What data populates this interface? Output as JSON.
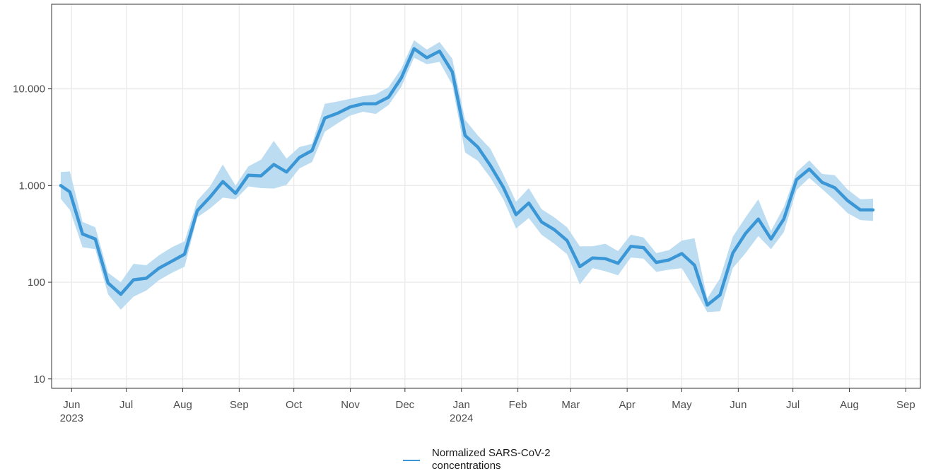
{
  "chart_data": {
    "type": "line",
    "title": "",
    "xlabel": "",
    "ylabel": "",
    "y_scale": "log10",
    "ylim": [
      8,
      75000
    ],
    "xlim": [
      "2023-05-21",
      "2024-09-09"
    ],
    "grid": true,
    "legend_position": "bottom",
    "colors": {
      "line": "#3b96d6",
      "band": "#bcdcf1",
      "grid": "#ebebeb",
      "axis": "#333333"
    },
    "y_ticks": [
      {
        "value": 10,
        "label": "10"
      },
      {
        "value": 100,
        "label": "100"
      },
      {
        "value": 1000,
        "label": "1.000"
      },
      {
        "value": 10000,
        "label": "10.000"
      }
    ],
    "x_ticks": [
      {
        "date": "2023-06-01",
        "label": "Jun",
        "year": "2023"
      },
      {
        "date": "2023-07-01",
        "label": "Jul",
        "year": ""
      },
      {
        "date": "2023-08-01",
        "label": "Aug",
        "year": ""
      },
      {
        "date": "2023-09-01",
        "label": "Sep",
        "year": ""
      },
      {
        "date": "2023-10-01",
        "label": "Oct",
        "year": ""
      },
      {
        "date": "2023-11-01",
        "label": "Nov",
        "year": ""
      },
      {
        "date": "2023-12-01",
        "label": "Dec",
        "year": ""
      },
      {
        "date": "2024-01-01",
        "label": "Jan",
        "year": "2024"
      },
      {
        "date": "2024-02-01",
        "label": "Feb",
        "year": ""
      },
      {
        "date": "2024-03-01",
        "label": "Mar",
        "year": ""
      },
      {
        "date": "2024-04-01",
        "label": "Apr",
        "year": ""
      },
      {
        "date": "2024-05-01",
        "label": "May",
        "year": ""
      },
      {
        "date": "2024-06-01",
        "label": "Jun",
        "year": ""
      },
      {
        "date": "2024-07-01",
        "label": "Jul",
        "year": ""
      },
      {
        "date": "2024-08-01",
        "label": "Aug",
        "year": ""
      },
      {
        "date": "2024-09-01",
        "label": "Sep",
        "year": ""
      }
    ],
    "series": [
      {
        "name": "Normalized SARS-CoV-2 concentrations",
        "dates": [
          "2023-05-26",
          "2023-05-31",
          "2023-06-07",
          "2023-06-14",
          "2023-06-21",
          "2023-06-28",
          "2023-07-05",
          "2023-07-12",
          "2023-07-19",
          "2023-07-26",
          "2023-08-02",
          "2023-08-09",
          "2023-08-16",
          "2023-08-23",
          "2023-08-30",
          "2023-09-06",
          "2023-09-13",
          "2023-09-20",
          "2023-09-27",
          "2023-10-04",
          "2023-10-11",
          "2023-10-18",
          "2023-10-25",
          "2023-11-01",
          "2023-11-08",
          "2023-11-15",
          "2023-11-22",
          "2023-11-29",
          "2023-12-06",
          "2023-12-13",
          "2023-12-20",
          "2023-12-27",
          "2024-01-03",
          "2024-01-10",
          "2024-01-17",
          "2024-01-24",
          "2024-01-31",
          "2024-02-07",
          "2024-02-14",
          "2024-02-21",
          "2024-02-28",
          "2024-03-06",
          "2024-03-13",
          "2024-03-20",
          "2024-03-27",
          "2024-04-03",
          "2024-04-10",
          "2024-04-17",
          "2024-04-24",
          "2024-05-01",
          "2024-05-08",
          "2024-05-15",
          "2024-05-22",
          "2024-05-29",
          "2024-06-05",
          "2024-06-12",
          "2024-06-19",
          "2024-06-26",
          "2024-07-03",
          "2024-07-10",
          "2024-07-17",
          "2024-07-24",
          "2024-07-31",
          "2024-08-07",
          "2024-08-14"
        ],
        "values": [
          1000,
          860,
          315,
          280,
          98,
          75,
          106,
          110,
          140,
          165,
          195,
          550,
          760,
          1100,
          830,
          1280,
          1260,
          1650,
          1380,
          1950,
          2300,
          5000,
          5600,
          6500,
          7000,
          7000,
          8200,
          13000,
          26000,
          21000,
          24500,
          15000,
          3300,
          2500,
          1600,
          960,
          500,
          660,
          420,
          350,
          270,
          145,
          178,
          175,
          157,
          235,
          228,
          160,
          170,
          198,
          150,
          58,
          74,
          200,
          320,
          450,
          280,
          450,
          1150,
          1480,
          1080,
          950,
          700,
          560,
          560
        ],
        "lower": [
          730,
          560,
          230,
          220,
          75,
          52,
          71,
          82,
          105,
          125,
          145,
          470,
          580,
          750,
          720,
          980,
          940,
          930,
          1020,
          1500,
          1750,
          3600,
          4400,
          5300,
          5800,
          5500,
          6800,
          10500,
          21000,
          18000,
          19000,
          11000,
          2200,
          1800,
          1200,
          720,
          360,
          460,
          310,
          250,
          195,
          95,
          140,
          130,
          118,
          180,
          175,
          128,
          135,
          140,
          85,
          49,
          50,
          140,
          200,
          300,
          220,
          330,
          900,
          1200,
          920,
          700,
          520,
          440,
          430
        ],
        "upper": [
          1380,
          1400,
          420,
          370,
          125,
          100,
          155,
          150,
          190,
          230,
          265,
          700,
          980,
          1650,
          1000,
          1580,
          1850,
          2900,
          1900,
          2500,
          2700,
          7000,
          7400,
          7900,
          8400,
          8800,
          10400,
          16200,
          31800,
          25500,
          30500,
          20500,
          4800,
          3300,
          2400,
          1300,
          680,
          940,
          570,
          470,
          370,
          235,
          235,
          250,
          210,
          310,
          290,
          200,
          215,
          270,
          285,
          68,
          110,
          295,
          470,
          720,
          340,
          600,
          1380,
          1820,
          1320,
          1280,
          910,
          720,
          730
        ]
      }
    ]
  },
  "legend": {
    "label_line1": "Normalized SARS-CoV-2",
    "label_line2": "concentrations"
  }
}
